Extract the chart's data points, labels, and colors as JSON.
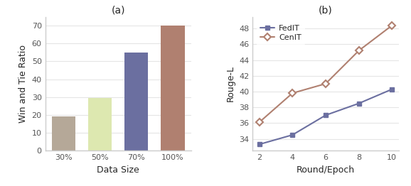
{
  "bar_categories": [
    "30%",
    "50%",
    "70%",
    "100%"
  ],
  "bar_values": [
    19,
    29.5,
    55,
    70
  ],
  "bar_colors": [
    "#b5a898",
    "#dde8b0",
    "#6b6fa0",
    "#b08070"
  ],
  "bar_xlabel": "Data Size",
  "bar_ylabel": "Win and Tie Ratio",
  "bar_title": "(a)",
  "bar_ylim": [
    0,
    75
  ],
  "bar_yticks": [
    0,
    10,
    20,
    30,
    40,
    50,
    60,
    70
  ],
  "line_x": [
    2,
    4,
    6,
    8,
    10
  ],
  "fedit_y": [
    33.3,
    34.5,
    37.0,
    38.5,
    40.3
  ],
  "cenit_y": [
    36.1,
    39.8,
    41.0,
    45.2,
    48.4
  ],
  "line_xlabel": "Round/Epoch",
  "line_ylabel": "Rouge-L",
  "line_title": "(b)",
  "line_ylim": [
    32.5,
    49.5
  ],
  "line_yticks": [
    34,
    36,
    38,
    40,
    42,
    44,
    46,
    48
  ],
  "line_xticks": [
    2,
    4,
    6,
    8,
    10
  ],
  "fedit_color": "#6b6fa0",
  "cenit_color": "#b08070",
  "fedit_label": "FedIT",
  "cenit_label": "CenIT",
  "bg_color": "#ffffff",
  "spine_color": "#cccccc"
}
